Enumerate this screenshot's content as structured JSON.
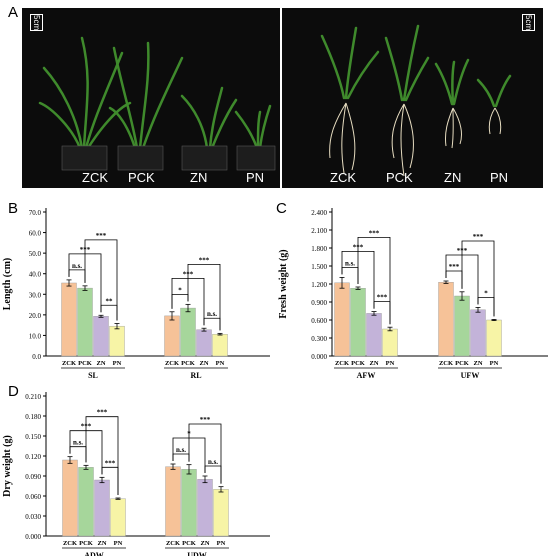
{
  "panels": {
    "a": "A",
    "b": "B",
    "c": "C",
    "d": "D"
  },
  "photos": {
    "left": {
      "labels": [
        "ZCK",
        "PCK",
        "ZN",
        "PN"
      ],
      "scale": "5cm"
    },
    "right": {
      "labels": [
        "ZCK",
        "PCK",
        "ZN",
        "PN"
      ],
      "scale": "5cm"
    }
  },
  "colors": {
    "ZCK": "#f6c298",
    "PCK": "#a6d69b",
    "ZN": "#c3b3d9",
    "PN": "#f7f4a6"
  },
  "chart_data": [
    {
      "id": "B",
      "type": "bar",
      "ylabel": "Length (cm)",
      "ylim": [
        0,
        70
      ],
      "yticks": [
        "0.0",
        "10.0",
        "20.0",
        "30.0",
        "40.0",
        "50.0",
        "60.0",
        "70.0"
      ],
      "bar_labels": [
        "ZCK",
        "PCK",
        "ZN",
        "PN"
      ],
      "groups": [
        {
          "name": "SL",
          "values": [
            35.5,
            33.0,
            19.3,
            14.5
          ],
          "errors": [
            1.5,
            1.1,
            0.5,
            1.3
          ],
          "brackets": [
            {
              "a": 0,
              "b": 1,
              "label": "n.s."
            },
            {
              "a": 0,
              "b": 2,
              "label": "***"
            },
            {
              "a": 1,
              "b": 3,
              "label": "***"
            },
            {
              "a": 2,
              "b": 3,
              "label": "**"
            }
          ]
        },
        {
          "name": "RL",
          "values": [
            19.5,
            23.3,
            12.8,
            10.6
          ],
          "errors": [
            2.0,
            1.8,
            0.7,
            0.4
          ],
          "brackets": [
            {
              "a": 0,
              "b": 1,
              "label": "*"
            },
            {
              "a": 0,
              "b": 2,
              "label": "***"
            },
            {
              "a": 1,
              "b": 3,
              "label": "***"
            },
            {
              "a": 2,
              "b": 3,
              "label": "n.s."
            }
          ]
        }
      ]
    },
    {
      "id": "C",
      "type": "bar",
      "ylabel": "Fresh weight (g)",
      "ylim": [
        0,
        2.4
      ],
      "yticks": [
        "0.000",
        "0.300",
        "0.600",
        "0.900",
        "1.200",
        "1.500",
        "1.800",
        "2.100",
        "2.400"
      ],
      "bar_labels": [
        "ZCK",
        "PCK",
        "ZN",
        "PN"
      ],
      "groups": [
        {
          "name": "AFW",
          "values": [
            1.22,
            1.13,
            0.71,
            0.45
          ],
          "errors": [
            0.09,
            0.02,
            0.03,
            0.03
          ],
          "brackets": [
            {
              "a": 0,
              "b": 1,
              "label": "n.s."
            },
            {
              "a": 0,
              "b": 2,
              "label": "***"
            },
            {
              "a": 1,
              "b": 3,
              "label": "***"
            },
            {
              "a": 2,
              "b": 3,
              "label": "***"
            }
          ]
        },
        {
          "name": "UFW",
          "values": [
            1.23,
            1.0,
            0.77,
            0.6
          ],
          "errors": [
            0.02,
            0.07,
            0.04,
            0.01
          ],
          "brackets": [
            {
              "a": 0,
              "b": 1,
              "label": "***"
            },
            {
              "a": 0,
              "b": 2,
              "label": "***"
            },
            {
              "a": 1,
              "b": 3,
              "label": "***"
            },
            {
              "a": 2,
              "b": 3,
              "label": "*"
            }
          ]
        }
      ]
    },
    {
      "id": "D",
      "type": "bar",
      "ylabel": "Dry weight (g)",
      "ylim": [
        0,
        0.21
      ],
      "yticks": [
        "0.000",
        "0.030",
        "0.060",
        "0.090",
        "0.120",
        "0.150",
        "0.180",
        "0.210"
      ],
      "bar_labels": [
        "ZCK",
        "PCK",
        "ZN",
        "PN"
      ],
      "groups": [
        {
          "name": "ADW",
          "values": [
            0.114,
            0.103,
            0.084,
            0.056
          ],
          "errors": [
            0.005,
            0.003,
            0.004,
            0.001
          ],
          "brackets": [
            {
              "a": 0,
              "b": 1,
              "label": "n.s."
            },
            {
              "a": 0,
              "b": 2,
              "label": "***"
            },
            {
              "a": 1,
              "b": 3,
              "label": "***"
            },
            {
              "a": 2,
              "b": 3,
              "label": "***"
            }
          ]
        },
        {
          "name": "UDW",
          "values": [
            0.104,
            0.1,
            0.085,
            0.07
          ],
          "errors": [
            0.004,
            0.007,
            0.005,
            0.004
          ],
          "brackets": [
            {
              "a": 0,
              "b": 1,
              "label": "n.s."
            },
            {
              "a": 0,
              "b": 2,
              "label": "*"
            },
            {
              "a": 1,
              "b": 3,
              "label": "***"
            },
            {
              "a": 2,
              "b": 3,
              "label": "n.s."
            }
          ]
        }
      ]
    }
  ]
}
